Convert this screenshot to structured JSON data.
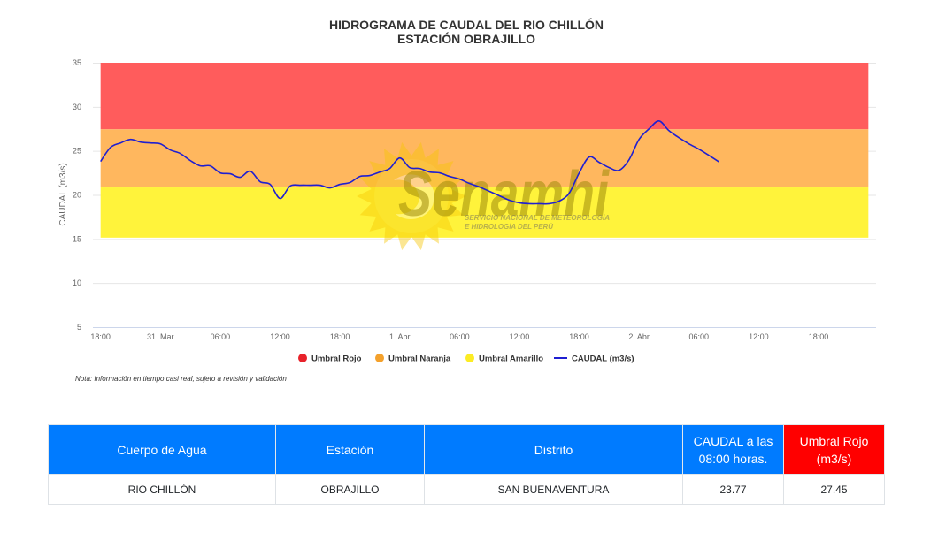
{
  "chart_data": {
    "type": "line",
    "title": "HIDROGRAMA DE CAUDAL DEL RIO CHILLÓN",
    "subtitle": "ESTACIÓN OBRAJILLO",
    "xlabel": "",
    "ylabel": "CAUDAL (m3/s)",
    "ylim": [
      5,
      35
    ],
    "yticks": [
      5,
      10,
      15,
      20,
      25,
      30,
      35
    ],
    "xlim": [
      "30. Mar 18:00",
      "2. Abr 23:00"
    ],
    "xticks": [
      "18:00",
      "31. Mar",
      "06:00",
      "12:00",
      "18:00",
      "1. Abr",
      "06:00",
      "12:00",
      "18:00",
      "2. Abr",
      "06:00",
      "12:00",
      "18:00"
    ],
    "grid": true,
    "legend_position": "bottom",
    "series": [
      {
        "name": "Umbral Rojo",
        "type": "band",
        "low": 27.45,
        "high": 35,
        "color": "#ff5c5c",
        "marker_color": "#e8222a"
      },
      {
        "name": "Umbral Naranja",
        "type": "band",
        "low": 20.85,
        "high": 27.45,
        "color": "#ffb75e",
        "marker_color": "#f4a12c"
      },
      {
        "name": "Umbral Amarillo",
        "type": "band",
        "low": 15.15,
        "high": 20.85,
        "color": "#fff33b",
        "marker_color": "#fcec24"
      },
      {
        "name": "CAUDAL (m3/s)",
        "type": "line",
        "color": "#1f1fd1",
        "x": [
          "30. Mar 18:00",
          "30. Mar 19:00",
          "30. Mar 20:00",
          "30. Mar 21:00",
          "30. Mar 22:00",
          "30. Mar 23:00",
          "31. Mar 00:00",
          "31. Mar 01:00",
          "31. Mar 02:00",
          "31. Mar 03:00",
          "31. Mar 04:00",
          "31. Mar 05:00",
          "31. Mar 06:00",
          "31. Mar 07:00",
          "31. Mar 08:00",
          "31. Mar 09:00",
          "31. Mar 10:00",
          "31. Mar 11:00",
          "31. Mar 12:00",
          "31. Mar 13:00",
          "31. Mar 14:00",
          "31. Mar 15:00",
          "31. Mar 16:00",
          "31. Mar 17:00",
          "31. Mar 18:00",
          "31. Mar 19:00",
          "31. Mar 20:00",
          "31. Mar 21:00",
          "31. Mar 22:00",
          "31. Mar 23:00",
          "1. Abr 00:00",
          "1. Abr 01:00",
          "1. Abr 02:00",
          "1. Abr 03:00",
          "1. Abr 04:00",
          "1. Abr 05:00",
          "1. Abr 06:00",
          "1. Abr 07:00",
          "1. Abr 08:00",
          "1. Abr 09:00",
          "1. Abr 10:00",
          "1. Abr 11:00",
          "1. Abr 12:00",
          "1. Abr 13:00",
          "1. Abr 14:00",
          "1. Abr 15:00",
          "1. Abr 16:00",
          "1. Abr 17:00",
          "1. Abr 18:00",
          "1. Abr 19:00",
          "1. Abr 20:00",
          "1. Abr 21:00",
          "1. Abr 22:00",
          "1. Abr 23:00",
          "2. Abr 00:00",
          "2. Abr 01:00",
          "2. Abr 02:00",
          "2. Abr 03:00",
          "2. Abr 04:00",
          "2. Abr 05:00",
          "2. Abr 06:00",
          "2. Abr 07:00",
          "2. Abr 08:00"
        ],
        "values": [
          23.8,
          25.4,
          25.9,
          26.3,
          26.0,
          25.9,
          25.8,
          25.1,
          24.7,
          23.9,
          23.3,
          23.3,
          22.5,
          22.4,
          22.0,
          22.7,
          21.5,
          21.2,
          19.6,
          21.0,
          21.1,
          21.1,
          21.1,
          20.8,
          21.2,
          21.4,
          22.1,
          22.2,
          22.6,
          23.0,
          24.2,
          23.1,
          23.0,
          22.6,
          22.5,
          22.1,
          21.8,
          21.3,
          20.9,
          20.4,
          19.9,
          19.4,
          19.1,
          19.0,
          19.0,
          19.0,
          19.3,
          20.2,
          22.5,
          24.3,
          23.7,
          23.1,
          22.8,
          24.0,
          26.3,
          27.5,
          28.4,
          27.3,
          26.5,
          25.8,
          25.2,
          24.5,
          23.77
        ]
      }
    ],
    "note": "Nota: Información en tiempo casi real, sujeto a revisión y validación"
  },
  "watermark": {
    "brand": "Senamhi",
    "line1": "SERVICIO NACIONAL DE METEOROLOGÍA",
    "line2": "E HIDROLOGÍA DEL PERÚ",
    "icon": "sun-logo-icon"
  },
  "table": {
    "header_color": "#007bff",
    "alert_color": "#ff0000",
    "headers": [
      "Cuerpo de Agua",
      "Estación",
      "Distrito",
      "CAUDAL a las 08:00 horas.",
      "Umbral Rojo (m3/s)"
    ],
    "rows": [
      [
        "RIO CHILLÓN",
        "OBRAJILLO",
        "SAN BUENAVENTURA",
        "23.77",
        "27.45"
      ]
    ]
  }
}
